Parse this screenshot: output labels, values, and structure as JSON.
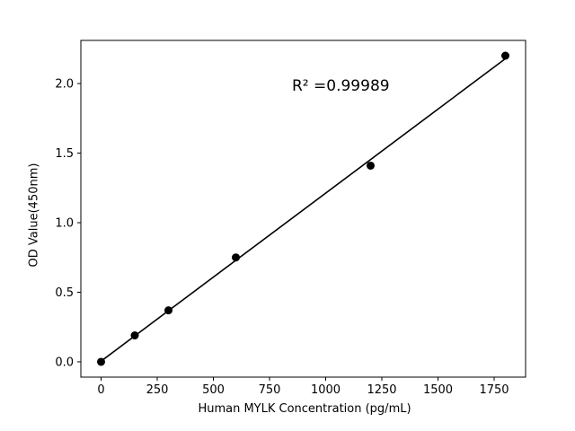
{
  "chart_data": {
    "type": "scatter",
    "title": "",
    "xlabel": "Human MYLK Concentration (pg/mL)",
    "ylabel": "OD Value(450nm)",
    "annotation": "R² =0.99989",
    "x": [
      0,
      150,
      300,
      600,
      1200,
      1800
    ],
    "y": [
      0.0,
      0.19,
      0.37,
      0.75,
      1.41,
      2.2
    ],
    "xlim": [
      -90,
      1890
    ],
    "ylim": [
      -0.11,
      2.31
    ],
    "xticks": [
      0,
      250,
      500,
      750,
      1000,
      1250,
      1500,
      1750
    ],
    "yticks": [
      0.0,
      0.5,
      1.0,
      1.5,
      2.0
    ],
    "grid": false,
    "legend": false,
    "trendline": true,
    "marker_color": "#000000",
    "line_color": "#000000",
    "background_color": "#ffffff",
    "annotation_data_x": 850,
    "annotation_data_y": 2.0
  }
}
